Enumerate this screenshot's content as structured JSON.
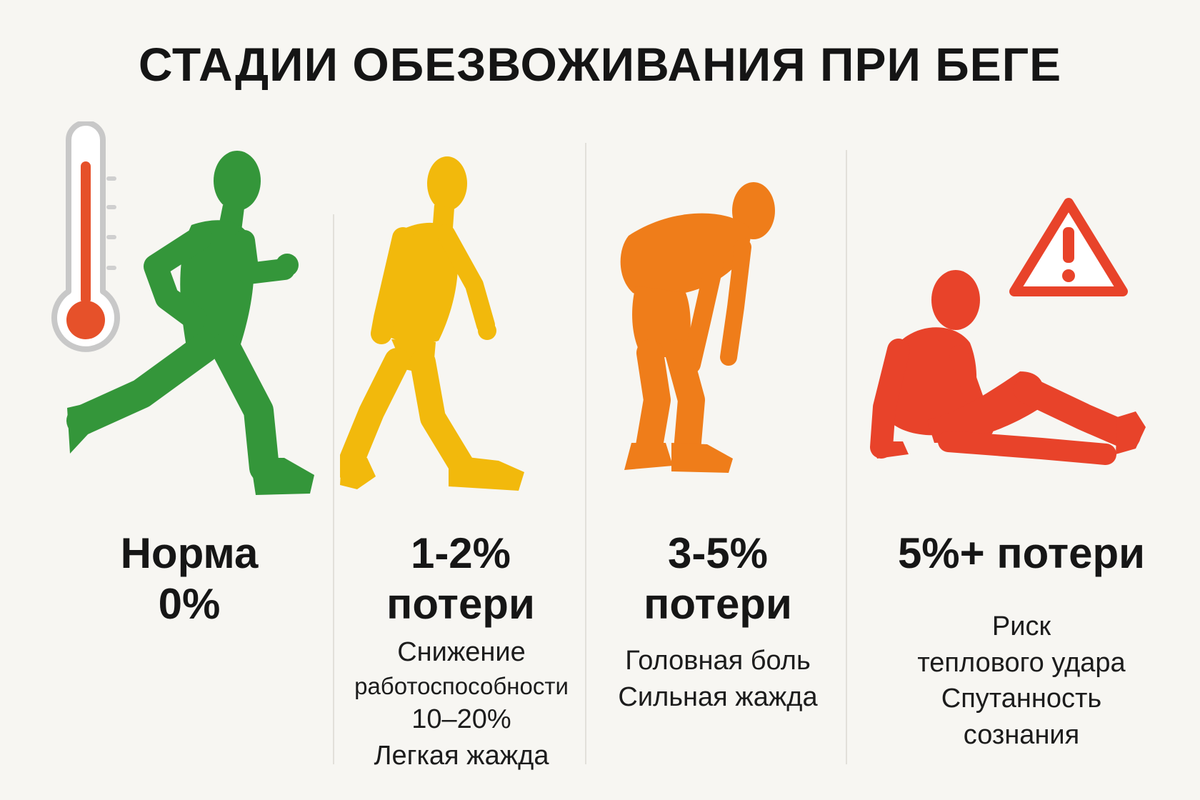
{
  "title": "СТАДИИ ОБЕЗВОЖИВАНИЯ ПРИ БЕГЕ",
  "colors": {
    "stage1": "#34963a",
    "stage2": "#f2b90c",
    "stage3": "#ef7d1a",
    "stage4": "#e8432a",
    "thermometer_bulb": "#e6512a",
    "divider": "#e2e0da"
  },
  "icons": [
    "thermometer-icon",
    "warning-icon"
  ],
  "stages": [
    {
      "figure": "running-man",
      "heading": [
        "Норма",
        "0%"
      ],
      "description": []
    },
    {
      "figure": "walking-tired-man",
      "heading": [
        "1-2%",
        "потери"
      ],
      "description": [
        "Снижение",
        "работоспособности",
        "10–20%",
        "Легкая жажда"
      ]
    },
    {
      "figure": "bent-over-man",
      "heading": [
        "3-5%",
        "потери"
      ],
      "description": [
        "Головная боль",
        "Сильная жажда"
      ]
    },
    {
      "figure": "collapsed-man",
      "heading": [
        "5%+ потери"
      ],
      "description": [
        "Риск",
        "теплового удара",
        "Спутанность",
        "сознания"
      ]
    }
  ]
}
